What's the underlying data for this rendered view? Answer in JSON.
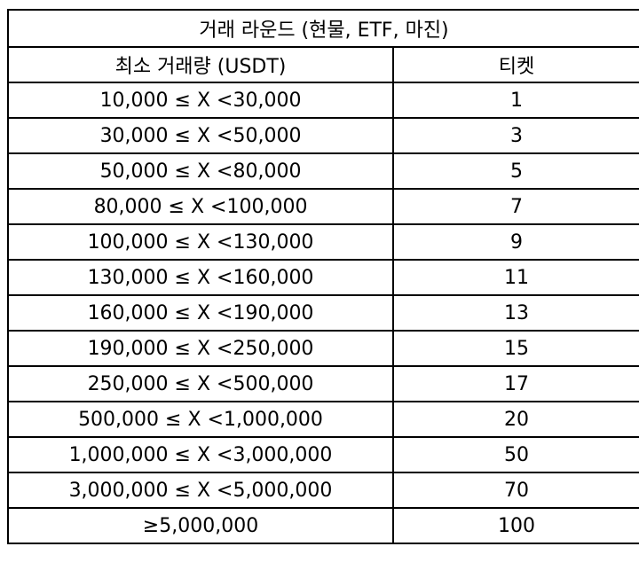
{
  "table": {
    "title": "거래 라운드 (현물, ETF, 마진)",
    "headers": [
      "최소 거래량 (USDT)",
      "티켓"
    ],
    "rows": [
      {
        "range": "10,000 ≤ X <30,000",
        "tickets": "1"
      },
      {
        "range": "30,000 ≤ X <50,000",
        "tickets": "3"
      },
      {
        "range": "50,000 ≤ X <80,000",
        "tickets": "5"
      },
      {
        "range": "80,000 ≤ X <100,000",
        "tickets": "7"
      },
      {
        "range": "100,000 ≤ X <130,000",
        "tickets": "9"
      },
      {
        "range": "130,000 ≤ X <160,000",
        "tickets": "11"
      },
      {
        "range": "160,000 ≤ X <190,000",
        "tickets": "13"
      },
      {
        "range": "190,000 ≤ X <250,000",
        "tickets": "15"
      },
      {
        "range": "250,000 ≤ X <500,000",
        "tickets": "17"
      },
      {
        "range": "500,000 ≤ X <1,000,000",
        "tickets": "20"
      },
      {
        "range": "1,000,000 ≤ X <3,000,000",
        "tickets": "50"
      },
      {
        "range": "3,000,000 ≤ X <5,000,000",
        "tickets": "70"
      },
      {
        "range": "≥5,000,000",
        "tickets": "100"
      }
    ]
  }
}
